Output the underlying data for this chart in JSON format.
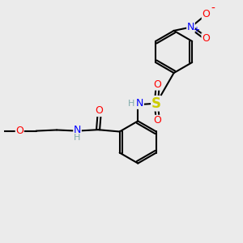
{
  "bg_color": "#ebebeb",
  "bond_color": "#000000",
  "bond_width": 1.5,
  "atom_colors": {
    "C": "#000000",
    "H": "#7faaaa",
    "N": "#0000ff",
    "O": "#ff0000",
    "S": "#cccc00"
  },
  "font_size": 8,
  "fig_size": [
    3.0,
    3.0
  ],
  "dpi": 100
}
